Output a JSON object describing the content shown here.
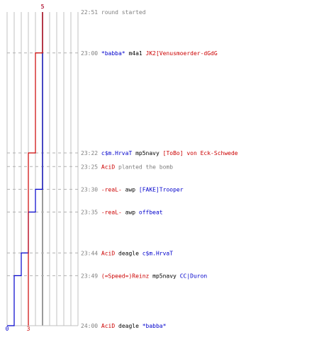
{
  "colors": {
    "team_blue": "#0000cc",
    "team_red": "#cc0000",
    "time": "#808080",
    "plain": "#000000",
    "grid": "#c0c0c0",
    "center_line": "#808080"
  },
  "scores": {
    "blue_start": "5",
    "red_start": "5",
    "blue_end": "0",
    "red_end": "3"
  },
  "chart_data": {
    "type": "line",
    "x": [
      "22:51",
      "23:00",
      "23:22",
      "23:25",
      "23:30",
      "23:35",
      "23:44",
      "23:49",
      "24:00"
    ],
    "series": [
      {
        "values": [
          5,
          5,
          5,
          5,
          4,
          3,
          2,
          1,
          0
        ]
      },
      {
        "values": [
          5,
          4,
          3,
          3,
          3,
          3,
          3,
          3,
          3
        ]
      }
    ],
    "ylim": [
      0,
      10
    ]
  },
  "events": [
    {
      "time": "22:51",
      "parts": [
        {
          "text": "round started",
          "color": "time"
        }
      ]
    },
    {
      "time": "23:00",
      "parts": [
        {
          "text": "*babba*",
          "color": "team_blue"
        },
        {
          "text": " m4a1 ",
          "color": "plain"
        },
        {
          "text": "JK2[Venusmoerder-dGdG",
          "color": "team_red"
        }
      ]
    },
    {
      "time": "23:22",
      "parts": [
        {
          "text": "c$m.HrvaT",
          "color": "team_blue"
        },
        {
          "text": " mp5navy ",
          "color": "plain"
        },
        {
          "text": "[ToBo] von Eck-Schwede",
          "color": "team_red"
        }
      ]
    },
    {
      "time": "23:25",
      "parts": [
        {
          "text": "AciD",
          "color": "team_red"
        },
        {
          "text": " planted the bomb",
          "color": "time"
        }
      ]
    },
    {
      "time": "23:30",
      "parts": [
        {
          "text": "-reaL-",
          "color": "team_red"
        },
        {
          "text": " awp ",
          "color": "plain"
        },
        {
          "text": "[FAKE]Trooper",
          "color": "team_blue"
        }
      ]
    },
    {
      "time": "23:35",
      "parts": [
        {
          "text": "-reaL-",
          "color": "team_red"
        },
        {
          "text": " awp ",
          "color": "plain"
        },
        {
          "text": "offbeat",
          "color": "team_blue"
        }
      ]
    },
    {
      "time": "23:44",
      "parts": [
        {
          "text": "AciD",
          "color": "team_red"
        },
        {
          "text": " deagle ",
          "color": "plain"
        },
        {
          "text": "c$m.HrvaT",
          "color": "team_blue"
        }
      ]
    },
    {
      "time": "23:49",
      "parts": [
        {
          "text": "(=Speed=)Reinz",
          "color": "team_red"
        },
        {
          "text": " mp5navy ",
          "color": "plain"
        },
        {
          "text": "CC|Duron",
          "color": "team_blue"
        }
      ]
    },
    {
      "time": "24:00",
      "parts": [
        {
          "text": "AciD",
          "color": "team_red"
        },
        {
          "text": " deagle ",
          "color": "plain"
        },
        {
          "text": "*babba*",
          "color": "team_blue"
        }
      ]
    }
  ]
}
